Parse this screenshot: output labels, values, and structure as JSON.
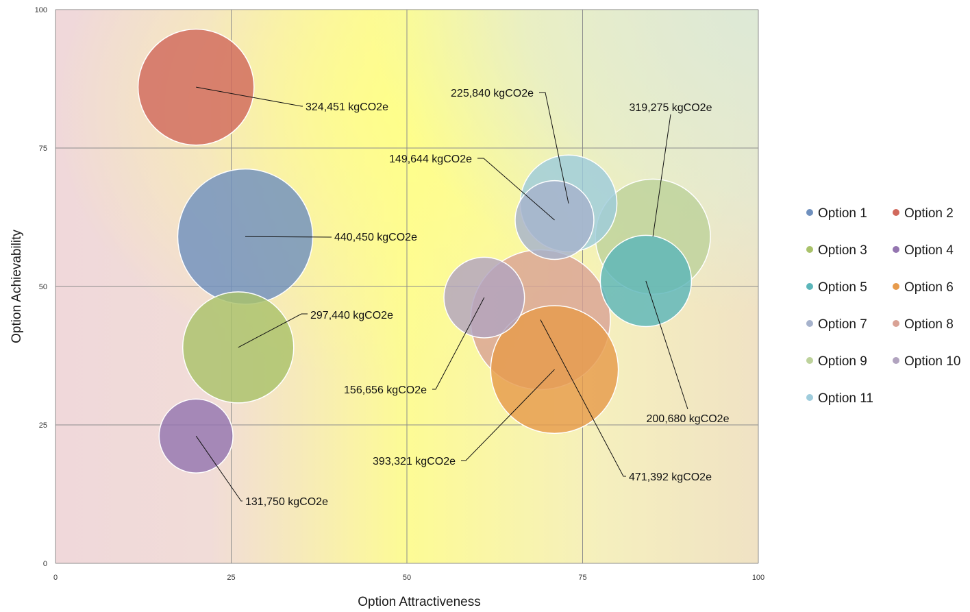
{
  "chart_data": {
    "type": "scatter",
    "variant": "bubble",
    "xlabel": "Option Attractiveness",
    "ylabel": "Option Achievability",
    "xlim": [
      0,
      100
    ],
    "ylim": [
      0,
      100
    ],
    "x_ticks": [
      "0",
      "25",
      "50",
      "75",
      "100"
    ],
    "y_ticks": [
      "0",
      "25",
      "50",
      "75",
      "100"
    ],
    "grid": true,
    "legend_position": "right",
    "background": "gradient: yellow centre, pink left, green top-right",
    "unit": "kgCO2e",
    "series": [
      {
        "name": "Option 1",
        "color": "#6F90BE",
        "x": 27,
        "y": 59,
        "size": 440450,
        "label": "440,450 kgCO2e"
      },
      {
        "name": "Option 2",
        "color": "#D1695C",
        "x": 20,
        "y": 86,
        "size": 324451,
        "label": "324,451 kgCO2e"
      },
      {
        "name": "Option 3",
        "color": "#A9C26A",
        "x": 26,
        "y": 39,
        "size": 297440,
        "label": "297,440 kgCO2e"
      },
      {
        "name": "Option 4",
        "color": "#9475B0",
        "x": 20,
        "y": 23,
        "size": 131750,
        "label": "131,750 kgCO2e"
      },
      {
        "name": "Option 5",
        "color": "#5BB6BA",
        "x": 84,
        "y": 51,
        "size": 200680,
        "label": "200,680 kgCO2e"
      },
      {
        "name": "Option 6",
        "color": "#E79B4C",
        "x": 71,
        "y": 35,
        "size": 393321,
        "label": "393,321 kgCO2e"
      },
      {
        "name": "Option 7",
        "color": "#A6B2CC",
        "x": 71,
        "y": 62,
        "size": 149644,
        "label": "149,644 kgCO2e"
      },
      {
        "name": "Option 8",
        "color": "#D9A295",
        "x": 69,
        "y": 44,
        "size": 471392,
        "label": "471,392 kgCO2e"
      },
      {
        "name": "Option 9",
        "color": "#BDD29B",
        "x": 85,
        "y": 59,
        "size": 319275,
        "label": "319,275 kgCO2e"
      },
      {
        "name": "Option 10",
        "color": "#B1A3BF",
        "x": 61,
        "y": 48,
        "size": 156656,
        "label": "156,656 kgCO2e"
      },
      {
        "name": "Option 11",
        "color": "#9ECCDC",
        "x": 73,
        "y": 65,
        "size": 225840,
        "label": "225,840 kgCO2e"
      }
    ]
  }
}
